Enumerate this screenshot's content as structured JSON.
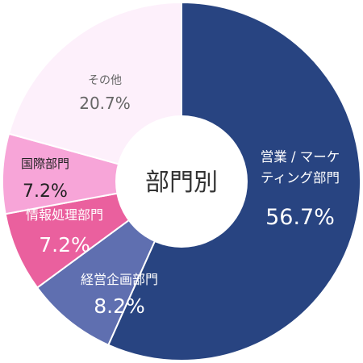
{
  "chart_data": {
    "type": "pie",
    "donut": true,
    "title": "部門別",
    "slices": [
      {
        "label": "営業 / マーケティング部門",
        "lines": [
          "営業 / マーケ",
          "ティング部門"
        ],
        "value": 56.7,
        "value_label": "56.7%",
        "color": "#284481",
        "text_color": "#ffffff"
      },
      {
        "label": "経営企画部門",
        "lines": [
          "経営企画部門"
        ],
        "value": 8.2,
        "value_label": "8.2%",
        "color": "#5f6fb0",
        "text_color": "#ffffff"
      },
      {
        "label": "情報処理部門",
        "lines": [
          "情報処理部門"
        ],
        "value": 7.2,
        "value_label": "7.2%",
        "color": "#ea609e",
        "text_color": "#ffffff"
      },
      {
        "label": "国際部門",
        "lines": [
          "国際部門"
        ],
        "value": 7.2,
        "value_label": "7.2%",
        "color": "#f7a5d8",
        "text_color": "#222222"
      },
      {
        "label": "その他",
        "lines": [
          "その他"
        ],
        "value": 20.7,
        "value_label": "20.7%",
        "color": "#fdf0fb",
        "text_color": "#666666"
      }
    ]
  }
}
